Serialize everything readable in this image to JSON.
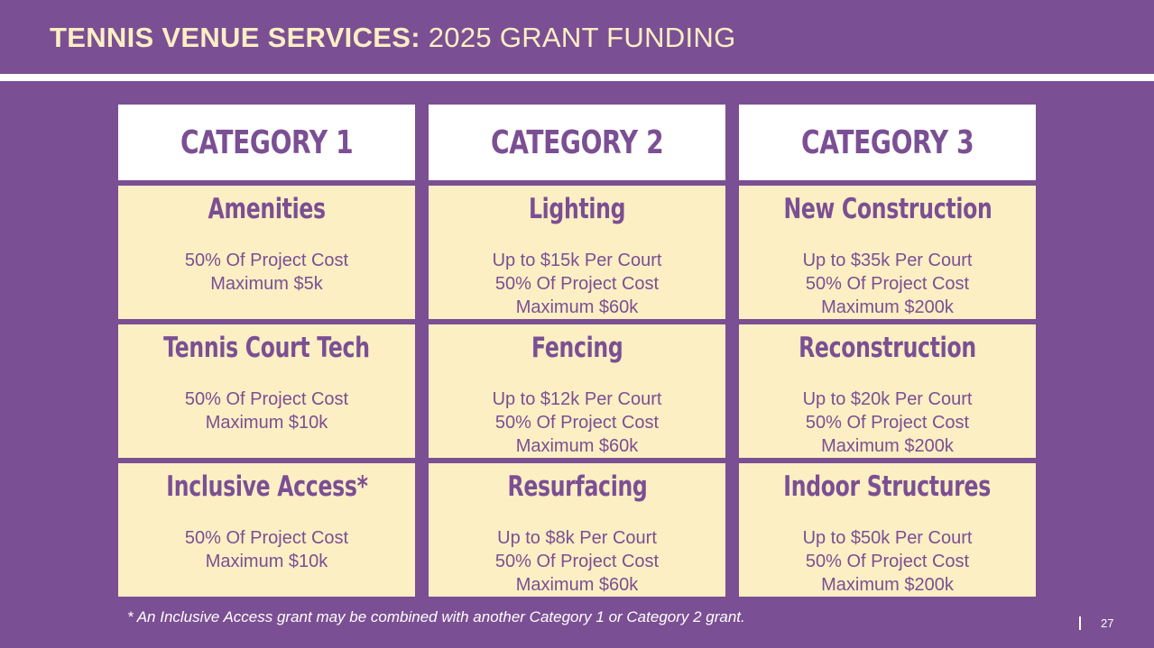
{
  "header": {
    "title_bold": "TENNIS VENUE SERVICES:",
    "title_rest": " 2025 GRANT FUNDING"
  },
  "categories": [
    {
      "label": "CATEGORY 1",
      "items": [
        {
          "name": "Amenities",
          "lines": [
            "50% Of Project Cost",
            "Maximum $5k"
          ]
        },
        {
          "name": "Tennis Court Tech",
          "lines": [
            "50% Of Project Cost",
            "Maximum $10k"
          ]
        },
        {
          "name": "Inclusive Access*",
          "lines": [
            "50% Of Project Cost",
            "Maximum $10k"
          ]
        }
      ]
    },
    {
      "label": "CATEGORY 2",
      "items": [
        {
          "name": "Lighting",
          "lines": [
            "Up to $15k Per Court",
            "50% Of Project Cost",
            "Maximum $60k"
          ]
        },
        {
          "name": "Fencing",
          "lines": [
            "Up to $12k Per Court",
            "50% Of Project Cost",
            "Maximum $60k"
          ]
        },
        {
          "name": "Resurfacing",
          "lines": [
            "Up to $8k Per Court",
            "50% Of Project Cost",
            "Maximum $60k"
          ]
        }
      ]
    },
    {
      "label": "CATEGORY 3",
      "items": [
        {
          "name": "New Construction",
          "lines": [
            "Up to $35k Per Court",
            "50% Of Project Cost",
            "Maximum $200k"
          ]
        },
        {
          "name": "Reconstruction",
          "lines": [
            "Up to $20k Per Court",
            "50% Of Project Cost",
            "Maximum $200k"
          ]
        },
        {
          "name": "Indoor Structures",
          "lines": [
            "Up to $50k Per Court",
            "50% Of Project Cost",
            "Maximum $200k"
          ]
        }
      ]
    }
  ],
  "footnote": "* An Inclusive Access grant may be combined with another Category 1 or Category 2 grant.",
  "page_number": "27",
  "colors": {
    "background": "#7b4f93",
    "accent_text": "#fdefc4",
    "cell_fill": "#fdefc4",
    "header_fill": "#ffffff"
  }
}
